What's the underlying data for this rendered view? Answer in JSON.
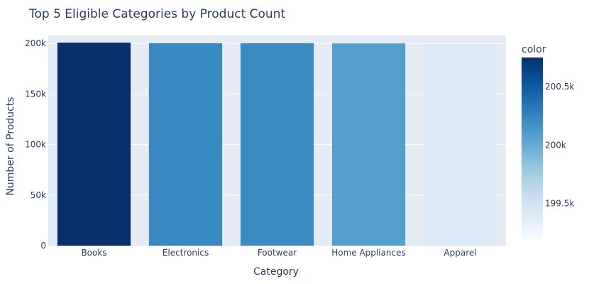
{
  "chart_data": {
    "type": "bar",
    "title": "Top 5 Eligible Categories by Product Count",
    "xlabel": "Category",
    "ylabel": "Number of Products",
    "categories": [
      "Books",
      "Electronics",
      "Footwear",
      "Home Appliances",
      "Apparel"
    ],
    "values": [
      200850,
      200230,
      200210,
      200080,
      199400
    ],
    "ylim": [
      0,
      200850
    ],
    "yticks": [
      0,
      50000,
      100000,
      150000,
      200000
    ],
    "ytick_labels": [
      "0",
      "50k",
      "100k",
      "150k",
      "200k"
    ],
    "grid": true,
    "colorbar": {
      "title": "color",
      "range": [
        199200,
        200750
      ],
      "ticks": [
        199500,
        200000,
        200500
      ],
      "tick_labels": [
        "199.5k",
        "200k",
        "200.5k"
      ],
      "colorscale": [
        "#f7fbff",
        "#deebf7",
        "#c6dbef",
        "#9ecae1",
        "#6baed6",
        "#4292c6",
        "#2171b5",
        "#08519c",
        "#08306b"
      ]
    },
    "colors": {
      "plot_bg": "#e5ecf6",
      "grid": "#ffffff",
      "text": "#2a3f5f"
    }
  }
}
